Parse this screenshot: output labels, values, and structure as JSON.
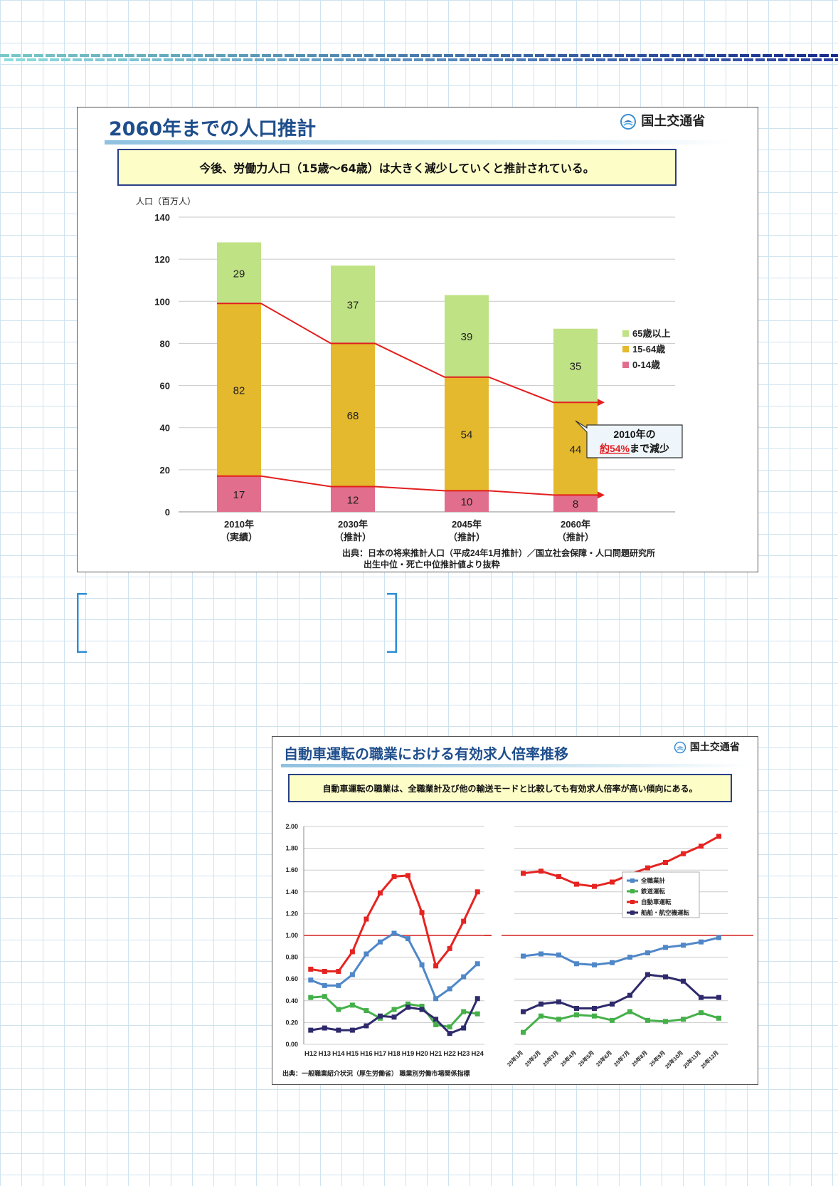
{
  "slide1": {
    "title": "2060年までの人口推計",
    "ministry": "国土交通省",
    "summary": "今後、労働力人口（15歳～64歳）は大きく減少していくと推計されている。",
    "callout_line1": "2010年の",
    "callout_highlight": "約54%",
    "callout_line2_rest": "まで減少",
    "source_line1": "出典：日本の将来推計人口（平成24年1月推計）／国立社会保障・人口問題研究所",
    "source_line2": "出生中位・死亡中位推計値より抜粋",
    "chart_data": {
      "type": "bar",
      "stacked": true,
      "ylabel": "人口（百万人）",
      "ylim": [
        0,
        140
      ],
      "yticks": [
        0,
        20,
        40,
        60,
        80,
        100,
        120,
        140
      ],
      "categories": [
        [
          "2010年",
          "（実績）"
        ],
        [
          "2030年",
          "（推計）"
        ],
        [
          "2045年",
          "（推計）"
        ],
        [
          "2060年",
          "（推計）"
        ]
      ],
      "series": [
        {
          "name": "0-14歳",
          "color": "#e06e8c",
          "values": [
            17,
            12,
            10,
            8
          ]
        },
        {
          "name": "15-64歳",
          "color": "#e4b92d",
          "values": [
            82,
            68,
            54,
            44
          ]
        },
        {
          "name": "65歳以上",
          "color": "#bfe285",
          "values": [
            29,
            37,
            39,
            35
          ]
        }
      ],
      "legend": [
        "65歳以上",
        "15-64歳",
        "0-14歳"
      ],
      "legend_position": "right",
      "grid": true,
      "trend_lines_color": "#e31e1e"
    }
  },
  "slide2": {
    "title": "自動車運転の職業における有効求人倍率推移",
    "ministry": "国土交通省",
    "summary": "自動車運転の職業は、全職業計及び他の輸送モードと比較しても有効求人倍率が高い傾向にある。",
    "source": "出典：一般職業紹介状況（厚生労働省） 職業別労働市場関係指標",
    "chart_data": [
      {
        "type": "line",
        "ylim": [
          0,
          2.0
        ],
        "yticks": [
          "0.00",
          "0.20",
          "0.40",
          "0.60",
          "0.80",
          "1.00",
          "1.20",
          "1.40",
          "1.60",
          "1.80",
          "2.00"
        ],
        "reference_line": 1.0,
        "categories": [
          "H12",
          "H13",
          "H14",
          "H15",
          "H16",
          "H17",
          "H18",
          "H19",
          "H20",
          "H21",
          "H22",
          "H23",
          "H24"
        ],
        "series": [
          {
            "name": "全職業計",
            "color": "#4f87c8",
            "values": [
              0.59,
              0.54,
              0.54,
              0.64,
              0.83,
              0.94,
              1.02,
              0.97,
              0.73,
              0.42,
              0.51,
              0.62,
              0.74
            ]
          },
          {
            "name": "鉄道運転",
            "color": "#45b04a",
            "values": [
              0.43,
              0.44,
              0.32,
              0.36,
              0.31,
              0.24,
              0.32,
              0.37,
              0.35,
              0.18,
              0.16,
              0.3,
              0.28
            ]
          },
          {
            "name": "自動車運転",
            "color": "#e52421",
            "values": [
              0.69,
              0.67,
              0.67,
              0.85,
              1.15,
              1.39,
              1.54,
              1.55,
              1.21,
              0.72,
              0.88,
              1.13,
              1.4
            ]
          },
          {
            "name": "船舶・航空機運転",
            "color": "#2e2a6b",
            "values": [
              0.13,
              0.15,
              0.13,
              0.13,
              0.17,
              0.26,
              0.25,
              0.34,
              0.32,
              0.23,
              0.1,
              0.15,
              0.42
            ]
          }
        ]
      },
      {
        "type": "line",
        "ylim": [
          0,
          2.0
        ],
        "reference_line": 1.0,
        "categories": [
          "25年1月",
          "25年2月",
          "25年3月",
          "25年4月",
          "25年5月",
          "25年6月",
          "25年7月",
          "25年8月",
          "25年9月",
          "25年10月",
          "25年11月",
          "25年12月"
        ],
        "series": [
          {
            "name": "全職業計",
            "color": "#4f87c8",
            "values": [
              0.81,
              0.83,
              0.82,
              0.74,
              0.73,
              0.75,
              0.8,
              0.84,
              0.89,
              0.91,
              0.94,
              0.98
            ]
          },
          {
            "name": "鉄道運転",
            "color": "#45b04a",
            "values": [
              0.11,
              0.26,
              0.23,
              0.27,
              0.26,
              0.22,
              0.3,
              0.22,
              0.21,
              0.23,
              0.29,
              0.24
            ]
          },
          {
            "name": "自動車運転",
            "color": "#e52421",
            "values": [
              1.57,
              1.59,
              1.54,
              1.47,
              1.45,
              1.49,
              1.56,
              1.62,
              1.67,
              1.75,
              1.82,
              1.91
            ]
          },
          {
            "name": "船舶・航空機運転",
            "color": "#2e2a6b",
            "values": [
              0.3,
              0.37,
              0.39,
              0.33,
              0.33,
              0.37,
              0.45,
              0.64,
              0.62,
              0.58,
              0.43,
              0.43
            ]
          }
        ],
        "legend": [
          "全職業計",
          "鉄道運転",
          "自動車運転",
          "船舶・航空機運転"
        ],
        "legend_position": "right"
      }
    ]
  }
}
